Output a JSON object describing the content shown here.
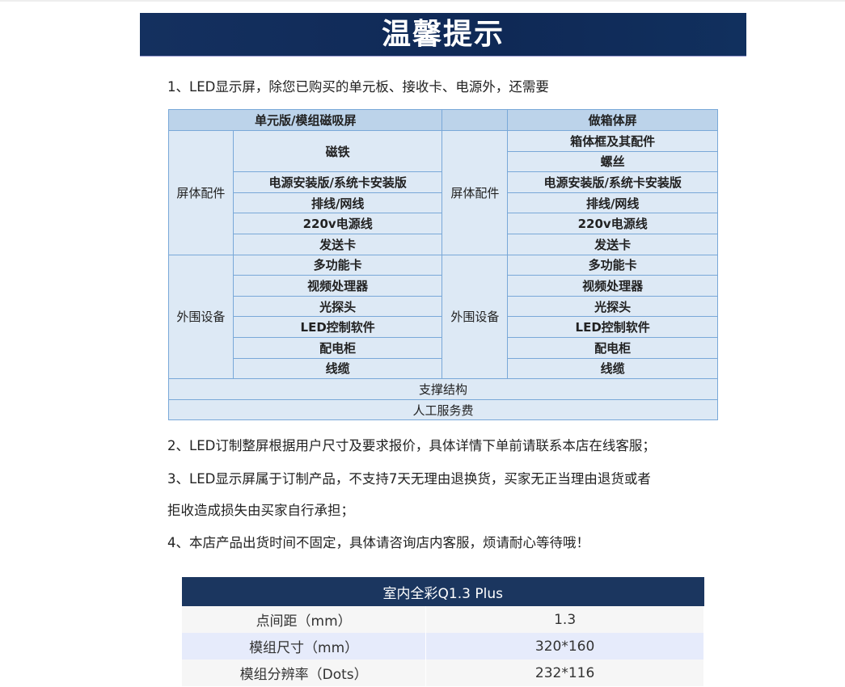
{
  "banner": {
    "title": "温馨提示"
  },
  "notes": [
    "1、LED显示屏，除您已购买的单元板、接收卡、电源外，还需要",
    "2、LED订制整屏根据用户尺寸及要求报价，具体详情下单前请联系本店在线客服；",
    "3、LED显示屏属于订制产品，不支持7天无理由退换货，买家无正当理由退货或者",
    "拒收造成损失由买家自行承担；",
    "4、本店产品出货时间不固定，具体请咨询店内客服，烦请耐心等待哦！"
  ],
  "table": {
    "headers": [
      "单元版/模组磁吸屏",
      "",
      "做箱体屏"
    ],
    "group1_label": "屏体配件",
    "group2_label": "外围设备",
    "left_g1": [
      "磁铁",
      "电源安装版/系统卡安装版",
      "排线/网线",
      "220v电源线",
      "发送卡"
    ],
    "right_g1": [
      "箱体框及其配件",
      "螺丝",
      "电源安装版/系统卡安装版",
      "排线/网线",
      "220v电源线",
      "发送卡"
    ],
    "g2": [
      "多功能卡",
      "视频处理器",
      "光探头",
      "LED控制软件",
      "配电柜",
      "线缆"
    ],
    "footer": [
      "支撑结构",
      "人工服务费"
    ]
  },
  "spec": {
    "title": "室内全彩Q1.3 Plus",
    "rows": [
      [
        "点间距（mm）",
        "1.3"
      ],
      [
        "模组尺寸（mm）",
        "320*160"
      ],
      [
        "模组分辨率（Dots）",
        "232*116"
      ]
    ]
  }
}
